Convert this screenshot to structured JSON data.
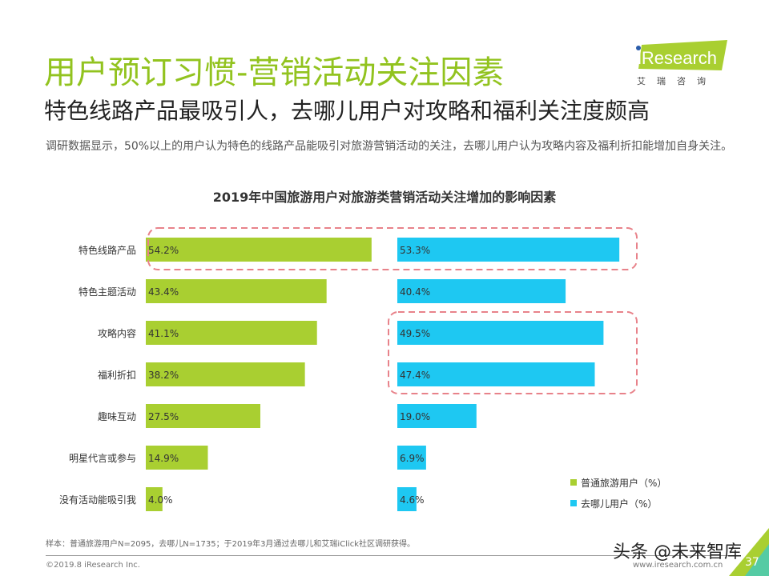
{
  "header": {
    "title": "用户预订习惯-营销活动关注因素",
    "subtitle": "特色线路产品最吸引人，去哪儿用户对攻略和福利关注度颇高",
    "description": "调研数据显示，50%以上的用户认为特色的线路产品能吸引对旅游营销活动的关注，去哪儿用户认为攻略内容及福利折扣能增加自身关注。"
  },
  "logo": {
    "text": "iResearch",
    "cn": "艾瑞咨询"
  },
  "colors": {
    "accent": "#92c31f",
    "series1": "#a9cf31",
    "series2": "#1ec8f2",
    "highlight": "#e8828a"
  },
  "chart_data": {
    "type": "bar",
    "orientation": "horizontal",
    "title": "2019年中国旅游用户对旅游类营销活动关注增加的影响因素",
    "categories": [
      "特色线路产品",
      "特色主题活动",
      "攻略内容",
      "福利折扣",
      "趣味互动",
      "明星代言或参与",
      "没有活动能吸引我"
    ],
    "series": [
      {
        "name": "普通旅游用户（%）",
        "values": [
          54.2,
          43.4,
          41.1,
          38.2,
          27.5,
          14.9,
          4.0
        ],
        "labels": [
          "54.2%",
          "43.4%",
          "41.1%",
          "38.2%",
          "27.5%",
          "14.9%",
          "4.0%"
        ]
      },
      {
        "name": "去哪儿用户（%）",
        "values": [
          53.3,
          40.4,
          49.5,
          47.4,
          19.0,
          6.9,
          4.6
        ],
        "labels": [
          "53.3%",
          "40.4%",
          "49.5%",
          "47.4%",
          "19.0%",
          "6.9%",
          "4.6%"
        ]
      }
    ],
    "legend": "bottom-right",
    "grid": false,
    "highlighted": [
      "特色线路产品 (both series)",
      "攻略内容, 福利折扣 (去哪儿用户)"
    ]
  },
  "footer": {
    "note": "样本：普通旅游用户N=2095，去哪儿N=1735；于2019年3月通过去哪儿和艾瑞iClick社区调研获得。",
    "copyright": "©2019.8 iResearch Inc.",
    "site": "www.iresearch.com.cn",
    "page": "37",
    "watermark": "头条 @未来智库"
  }
}
